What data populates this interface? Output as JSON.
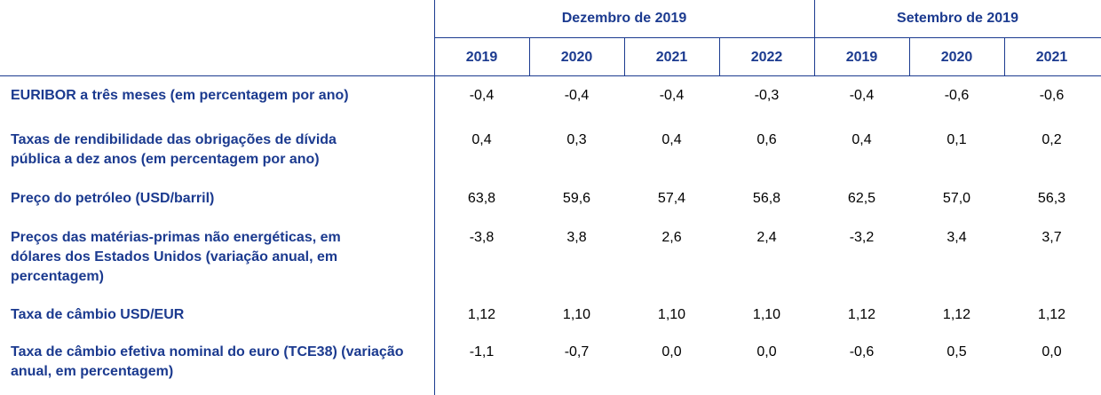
{
  "header": {
    "groups": [
      "Dezembro de 2019",
      "Setembro de 2019"
    ],
    "years": [
      "2019",
      "2020",
      "2021",
      "2022",
      "2019",
      "2020",
      "2021"
    ]
  },
  "rows": [
    {
      "label": "EURIBOR a três meses (em percentagem por ano)",
      "values": [
        "-0,4",
        "-0,4",
        "-0,4",
        "-0,3",
        "-0,4",
        "-0,6",
        "-0,6"
      ]
    },
    {
      "label": "Taxas de rendibilidade das obrigações de dívida pública a dez anos (em percentagem por ano)",
      "values": [
        "0,4",
        "0,3",
        "0,4",
        "0,6",
        "0,4",
        "0,1",
        "0,2"
      ]
    },
    {
      "label": "Preço do petróleo (USD/barril)",
      "values": [
        "63,8",
        "59,6",
        "57,4",
        "56,8",
        "62,5",
        "57,0",
        "56,3"
      ]
    },
    {
      "label": "Preços das matérias-primas não energéticas, em dólares dos Estados Unidos (variação anual, em percentagem)",
      "values": [
        "-3,8",
        "3,8",
        "2,6",
        "2,4",
        "-3,2",
        "3,4",
        "3,7"
      ]
    },
    {
      "label": "Taxa de câmbio USD/EUR",
      "values": [
        "1,12",
        "1,10",
        "1,10",
        "1,10",
        "1,12",
        "1,12",
        "1,12"
      ]
    },
    {
      "label": "Taxa de câmbio efetiva nominal do euro (TCE38) (variação anual, em percentagem)",
      "values": [
        "-1,1",
        "-0,7",
        "0,0",
        "0,0",
        "-0,6",
        "0,5",
        "0,0"
      ]
    }
  ]
}
